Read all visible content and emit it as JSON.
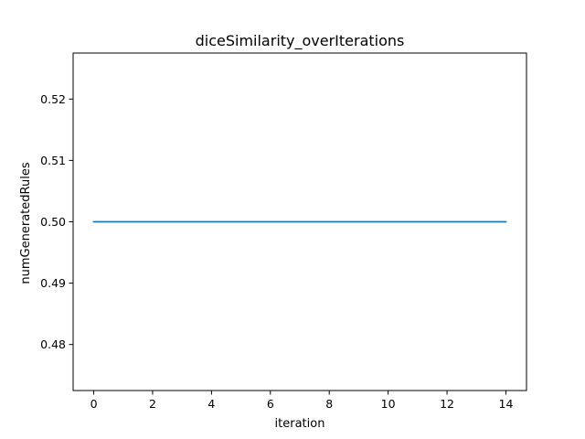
{
  "chart_data": {
    "type": "line",
    "title": "diceSimilarity_overIterations",
    "xlabel": "iteration",
    "ylabel": "numGeneratedRules",
    "xlim": [
      -0.7,
      14.7
    ],
    "ylim": [
      0.4725,
      0.5275
    ],
    "xticks": [
      0,
      2,
      4,
      6,
      8,
      10,
      12,
      14
    ],
    "xtick_labels": [
      "0",
      "2",
      "4",
      "6",
      "8",
      "10",
      "12",
      "14"
    ],
    "yticks": [
      0.48,
      0.49,
      0.5,
      0.51,
      0.52
    ],
    "ytick_labels": [
      "0.48",
      "0.49",
      "0.50",
      "0.51",
      "0.52"
    ],
    "grid": false,
    "series": [
      {
        "name": "diceSimilarity",
        "color": "#1f77b4",
        "x": [
          0,
          1,
          2,
          3,
          4,
          5,
          6,
          7,
          8,
          9,
          10,
          11,
          12,
          13,
          14
        ],
        "y": [
          0.5,
          0.5,
          0.5,
          0.5,
          0.5,
          0.5,
          0.5,
          0.5,
          0.5,
          0.5,
          0.5,
          0.5,
          0.5,
          0.5,
          0.5
        ]
      }
    ]
  }
}
